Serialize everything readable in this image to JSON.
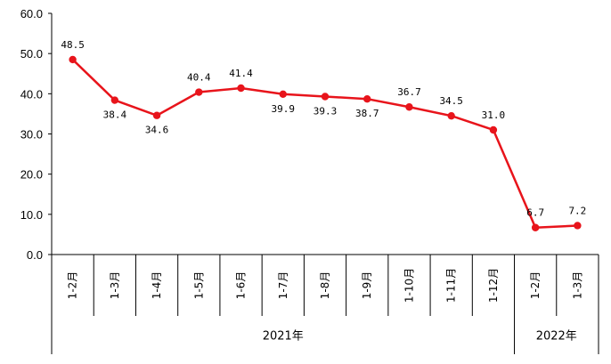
{
  "chart_data": {
    "type": "line",
    "categories": [
      "1-2月",
      "1-3月",
      "1-4月",
      "1-5月",
      "1-6月",
      "1-7月",
      "1-8月",
      "1-9月",
      "1-10月",
      "1-11月",
      "1-12月",
      "1-2月",
      "1-3月"
    ],
    "groups": [
      {
        "label": "2021年",
        "count": 11
      },
      {
        "label": "2022年",
        "count": 2
      }
    ],
    "values": [
      48.5,
      38.4,
      34.6,
      40.4,
      41.4,
      39.9,
      39.3,
      38.7,
      36.7,
      34.5,
      31.0,
      6.7,
      7.2
    ],
    "value_labels": [
      "48.5",
      "38.4",
      "34.6",
      "40.4",
      "41.4",
      "39.9",
      "39.3",
      "38.7",
      "36.7",
      "34.5",
      "31.0",
      "6.7",
      "7.2"
    ],
    "yticks": [
      "0.0",
      "10.0",
      "20.0",
      "30.0",
      "40.0",
      "50.0",
      "60.0"
    ],
    "ylim": [
      0,
      60
    ],
    "color": "#e8141b",
    "grid": false,
    "title": "",
    "xlabel": "",
    "ylabel": ""
  }
}
